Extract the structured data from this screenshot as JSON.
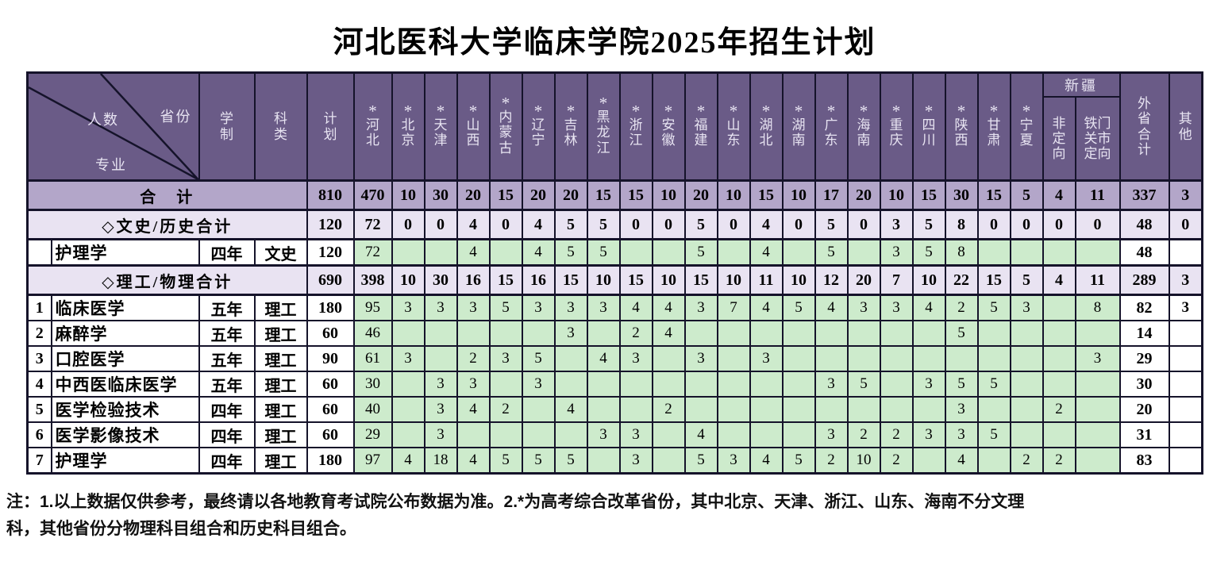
{
  "title": "河北医科大学临床学院2025年招生计划",
  "colors": {
    "header_bg": "#6a5b87",
    "header_text": "#e8e4f2",
    "total_row_bg": "#b3a6c9",
    "subtotal_row_bg": "#e9e3f2",
    "data_cell_bg": "#cdebcc",
    "border": "#15132a"
  },
  "table": {
    "corner": {
      "top_right": "省份",
      "middle": "人数",
      "bottom_left": "专业"
    },
    "header": {
      "xuezhi": "学制",
      "kelei": "科类",
      "jihua": "计划",
      "provinces": [
        {
          "name": "河北",
          "star": true
        },
        {
          "name": "北京",
          "star": true
        },
        {
          "name": "天津",
          "star": true
        },
        {
          "name": "山西",
          "star": true
        },
        {
          "name": "内蒙古",
          "star": true
        },
        {
          "name": "辽宁",
          "star": true
        },
        {
          "name": "吉林",
          "star": true
        },
        {
          "name": "黑龙江",
          "star": true
        },
        {
          "name": "浙江",
          "star": true
        },
        {
          "name": "安徽",
          "star": true
        },
        {
          "name": "福建",
          "star": true
        },
        {
          "name": "山东",
          "star": true
        },
        {
          "name": "湖北",
          "star": true
        },
        {
          "name": "湖南",
          "star": true
        },
        {
          "name": "广东",
          "star": true
        },
        {
          "name": "海南",
          "star": true
        },
        {
          "name": "重庆",
          "star": true
        },
        {
          "name": "四川",
          "star": true
        },
        {
          "name": "陕西",
          "star": true
        },
        {
          "name": "甘肃",
          "star": true
        },
        {
          "name": "宁夏",
          "star": true
        }
      ],
      "xinjiang_group": {
        "label": "新疆",
        "sub": [
          "非定向",
          "铁门关市定向"
        ]
      },
      "waisheng": "外省合计",
      "qita": "其他"
    },
    "rows": [
      {
        "type": "total",
        "label": "合　计",
        "values": [
          "810",
          "470",
          "10",
          "30",
          "20",
          "15",
          "20",
          "20",
          "15",
          "15",
          "10",
          "20",
          "10",
          "15",
          "10",
          "17",
          "20",
          "10",
          "15",
          "30",
          "15",
          "5",
          "4",
          "11",
          "337",
          "3"
        ]
      },
      {
        "type": "subtotal",
        "label": "◇文史/历史合计",
        "values": [
          "120",
          "72",
          "0",
          "0",
          "4",
          "0",
          "4",
          "5",
          "5",
          "0",
          "0",
          "5",
          "0",
          "4",
          "0",
          "5",
          "0",
          "3",
          "5",
          "8",
          "0",
          "0",
          "0",
          "0",
          "48",
          "0"
        ]
      },
      {
        "type": "data",
        "num": "",
        "major": "护理学",
        "years": "四年",
        "category": "文史",
        "values": [
          "120",
          "72",
          "",
          "",
          "4",
          "",
          "4",
          "5",
          "5",
          "",
          "",
          "5",
          "",
          "4",
          "",
          "5",
          "",
          "3",
          "5",
          "8",
          "",
          "",
          "",
          "",
          "48",
          ""
        ]
      },
      {
        "type": "subtotal",
        "label": "◇理工/物理合计",
        "values": [
          "690",
          "398",
          "10",
          "30",
          "16",
          "15",
          "16",
          "15",
          "10",
          "15",
          "10",
          "15",
          "10",
          "11",
          "10",
          "12",
          "20",
          "7",
          "10",
          "22",
          "15",
          "5",
          "4",
          "11",
          "289",
          "3"
        ]
      },
      {
        "type": "data",
        "num": "1",
        "major": "临床医学",
        "years": "五年",
        "category": "理工",
        "values": [
          "180",
          "95",
          "3",
          "3",
          "3",
          "5",
          "3",
          "3",
          "3",
          "4",
          "4",
          "3",
          "7",
          "4",
          "5",
          "4",
          "3",
          "3",
          "4",
          "2",
          "5",
          "3",
          "",
          "8",
          "82",
          "3"
        ]
      },
      {
        "type": "data",
        "num": "2",
        "major": "麻醉学",
        "years": "五年",
        "category": "理工",
        "values": [
          "60",
          "46",
          "",
          "",
          "",
          "",
          "",
          "3",
          "",
          "2",
          "4",
          "",
          "",
          "",
          "",
          "",
          "",
          "",
          "",
          "5",
          "",
          "",
          "",
          "",
          "14",
          ""
        ]
      },
      {
        "type": "data",
        "num": "3",
        "major": "口腔医学",
        "years": "五年",
        "category": "理工",
        "values": [
          "90",
          "61",
          "3",
          "",
          "2",
          "3",
          "5",
          "",
          "4",
          "3",
          "",
          "3",
          "",
          "3",
          "",
          "",
          "",
          "",
          "",
          "",
          "",
          "",
          "",
          "3",
          "29",
          ""
        ]
      },
      {
        "type": "data",
        "num": "4",
        "major": "中西医临床医学",
        "years": "五年",
        "category": "理工",
        "values": [
          "60",
          "30",
          "",
          "3",
          "3",
          "",
          "3",
          "",
          "",
          "",
          "",
          "",
          "",
          "",
          "",
          "3",
          "5",
          "",
          "3",
          "5",
          "5",
          "",
          "",
          "",
          "30",
          ""
        ]
      },
      {
        "type": "data",
        "num": "5",
        "major": "医学检验技术",
        "years": "四年",
        "category": "理工",
        "values": [
          "60",
          "40",
          "",
          "3",
          "4",
          "2",
          "",
          "4",
          "",
          "",
          "2",
          "",
          "",
          "",
          "",
          "",
          "",
          "",
          "",
          "3",
          "",
          "",
          "2",
          "",
          "20",
          ""
        ]
      },
      {
        "type": "data",
        "num": "6",
        "major": "医学影像技术",
        "years": "四年",
        "category": "理工",
        "values": [
          "60",
          "29",
          "",
          "3",
          "",
          "",
          "",
          "",
          "3",
          "3",
          "",
          "4",
          "",
          "",
          "",
          "3",
          "2",
          "2",
          "3",
          "3",
          "5",
          "",
          "",
          "",
          "31",
          ""
        ]
      },
      {
        "type": "data",
        "num": "7",
        "major": "护理学",
        "years": "四年",
        "category": "理工",
        "values": [
          "180",
          "97",
          "4",
          "18",
          "4",
          "5",
          "5",
          "5",
          "",
          "3",
          "",
          "5",
          "3",
          "4",
          "5",
          "2",
          "10",
          "2",
          "",
          "4",
          "",
          "2",
          "2",
          "",
          "83",
          ""
        ]
      }
    ]
  },
  "notes": [
    "注：1.以上数据仅供参考，最终请以各地教育考试院公布数据为准。2.*为高考综合改革省份，其中北京、天津、浙江、山东、海南不分文理",
    "科，其他省份分物理科目组合和历史科目组合。"
  ]
}
